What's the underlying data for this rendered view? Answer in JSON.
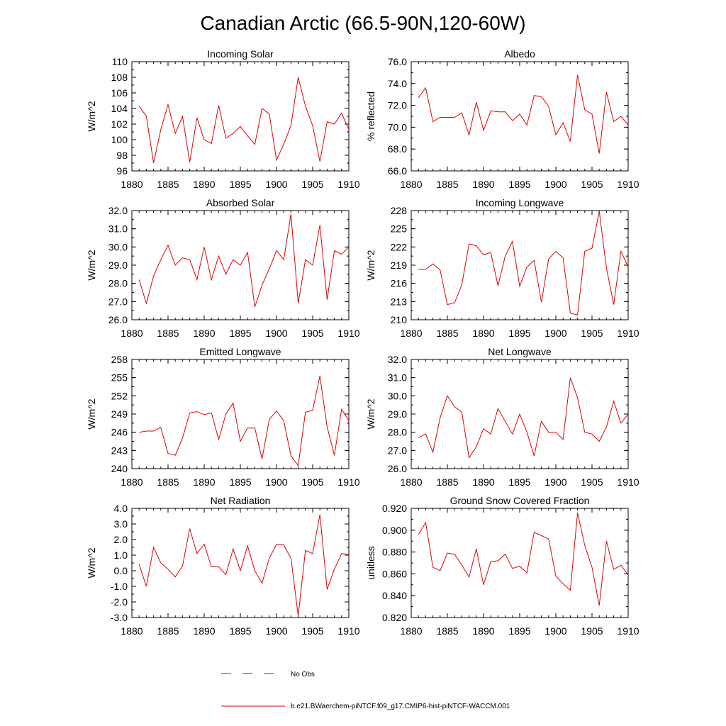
{
  "figure": {
    "title": "Canadian Arctic (66.5-90N,120-60W)"
  },
  "legend": {
    "items": [
      {
        "label": "No Obs",
        "color": "#1f3fbf",
        "style": "dashed"
      },
      {
        "label": "b.e21.BWaerchem-piNTCF.f09_g17.CMIP6-hist-piNTCF-WACCM.001",
        "color": "#e00000",
        "style": "solid"
      }
    ]
  },
  "chart_data": [
    {
      "type": "line",
      "title": "Incoming Solar",
      "ylabel": "W/m^2",
      "xlim": [
        1880,
        1910
      ],
      "ylim": [
        96,
        110
      ],
      "xticks": [
        "1880",
        "1885",
        "1890",
        "1895",
        "1900",
        "1905",
        "1910"
      ],
      "yticks": [
        "96",
        "98",
        "100",
        "102",
        "104",
        "106",
        "108",
        "110"
      ],
      "x": [
        1881,
        1882,
        1883,
        1884,
        1885,
        1886,
        1887,
        1888,
        1889,
        1890,
        1891,
        1892,
        1893,
        1894,
        1895,
        1896,
        1897,
        1898,
        1899,
        1900,
        1901,
        1902,
        1903,
        1904,
        1905,
        1906,
        1907,
        1908,
        1909,
        1910
      ],
      "series": [
        {
          "values": [
            104.3,
            103.0,
            97.0,
            101.3,
            104.5,
            100.8,
            103.0,
            97.1,
            102.8,
            100.0,
            99.5,
            104.4,
            100.2,
            100.8,
            101.7,
            100.5,
            99.4,
            104.0,
            103.3,
            97.4,
            99.4,
            101.8,
            108.0,
            104.3,
            101.8,
            97.2,
            102.3,
            102.0,
            103.4,
            101.3
          ]
        }
      ]
    },
    {
      "type": "line",
      "title": "Albedo",
      "ylabel": "% reflected",
      "xlim": [
        1880,
        1910
      ],
      "ylim": [
        66.0,
        76.0
      ],
      "xticks": [
        "1880",
        "1885",
        "1890",
        "1895",
        "1900",
        "1905",
        "1910"
      ],
      "yticks": [
        "66.0",
        "68.0",
        "70.0",
        "72.0",
        "74.0",
        "76.0"
      ],
      "x": [
        1881,
        1882,
        1883,
        1884,
        1885,
        1886,
        1887,
        1888,
        1889,
        1890,
        1891,
        1892,
        1893,
        1894,
        1895,
        1896,
        1897,
        1898,
        1899,
        1900,
        1901,
        1902,
        1903,
        1904,
        1905,
        1906,
        1907,
        1908,
        1909,
        1910
      ],
      "series": [
        {
          "values": [
            72.7,
            73.6,
            70.5,
            70.9,
            70.9,
            70.9,
            71.3,
            69.3,
            72.3,
            69.7,
            71.5,
            71.4,
            71.4,
            70.6,
            71.2,
            70.2,
            72.9,
            72.8,
            71.9,
            69.3,
            70.4,
            68.7,
            74.8,
            71.6,
            71.2,
            67.6,
            73.2,
            70.5,
            71.0,
            70.2
          ]
        }
      ]
    },
    {
      "type": "line",
      "title": "Absorbed Solar",
      "ylabel": "W/m^2",
      "xlim": [
        1880,
        1910
      ],
      "ylim": [
        26.0,
        32.0
      ],
      "xticks": [
        "1880",
        "1885",
        "1890",
        "1895",
        "1900",
        "1905",
        "1910"
      ],
      "yticks": [
        "26.0",
        "27.0",
        "28.0",
        "29.0",
        "30.0",
        "31.0",
        "32.0"
      ],
      "x": [
        1881,
        1882,
        1883,
        1884,
        1885,
        1886,
        1887,
        1888,
        1889,
        1890,
        1891,
        1892,
        1893,
        1894,
        1895,
        1896,
        1897,
        1898,
        1899,
        1900,
        1901,
        1902,
        1903,
        1904,
        1905,
        1906,
        1907,
        1908,
        1909,
        1910
      ],
      "series": [
        {
          "values": [
            28.2,
            26.9,
            28.4,
            29.3,
            30.1,
            29.0,
            29.4,
            29.3,
            28.2,
            30.0,
            28.2,
            29.5,
            28.5,
            29.3,
            29.0,
            29.7,
            26.7,
            27.9,
            28.8,
            29.8,
            29.3,
            31.8,
            26.9,
            29.3,
            29.0,
            31.2,
            27.1,
            29.8,
            29.6,
            30.0
          ]
        }
      ]
    },
    {
      "type": "line",
      "title": "Incoming Longwave",
      "ylabel": "W/m^2",
      "xlim": [
        1880,
        1910
      ],
      "ylim": [
        210,
        228
      ],
      "xticks": [
        "1880",
        "1885",
        "1890",
        "1895",
        "1900",
        "1905",
        "1910"
      ],
      "yticks": [
        "210",
        "213",
        "216",
        "219",
        "222",
        "225",
        "228"
      ],
      "x": [
        1881,
        1882,
        1883,
        1884,
        1885,
        1886,
        1887,
        1888,
        1889,
        1890,
        1891,
        1892,
        1893,
        1894,
        1895,
        1896,
        1897,
        1898,
        1899,
        1900,
        1901,
        1902,
        1903,
        1904,
        1905,
        1906,
        1907,
        1908,
        1909,
        1910
      ],
      "series": [
        {
          "values": [
            218.3,
            218.3,
            219.2,
            218.2,
            212.5,
            212.8,
            215.8,
            222.5,
            222.2,
            220.7,
            221.1,
            215.6,
            220.5,
            222.9,
            215.5,
            218.7,
            219.8,
            212.9,
            220.0,
            221.3,
            220.2,
            211.1,
            210.8,
            221.3,
            221.8,
            227.9,
            218.5,
            212.5,
            221.3,
            218.7
          ]
        }
      ]
    },
    {
      "type": "line",
      "title": "Emitted Longwave",
      "ylabel": "W/m^2",
      "xlim": [
        1880,
        1910
      ],
      "ylim": [
        240,
        258
      ],
      "xticks": [
        "1880",
        "1885",
        "1890",
        "1895",
        "1900",
        "1905",
        "1910"
      ],
      "yticks": [
        "240",
        "243",
        "246",
        "249",
        "252",
        "255",
        "258"
      ],
      "x": [
        1881,
        1882,
        1883,
        1884,
        1885,
        1886,
        1887,
        1888,
        1889,
        1890,
        1891,
        1892,
        1893,
        1894,
        1895,
        1896,
        1897,
        1898,
        1899,
        1900,
        1901,
        1902,
        1903,
        1904,
        1905,
        1906,
        1907,
        1908,
        1909,
        1910
      ],
      "series": [
        {
          "values": [
            246.0,
            246.2,
            246.2,
            246.8,
            242.5,
            242.2,
            245.0,
            249.2,
            249.4,
            248.9,
            249.2,
            244.8,
            249.0,
            250.8,
            244.5,
            246.7,
            246.7,
            241.6,
            248.1,
            249.5,
            247.9,
            242.1,
            240.5,
            249.3,
            249.6,
            255.3,
            246.9,
            242.2,
            249.8,
            247.9
          ]
        }
      ]
    },
    {
      "type": "line",
      "title": "Net Longwave",
      "ylabel": "W/m^2",
      "xlim": [
        1880,
        1910
      ],
      "ylim": [
        26.0,
        32.0
      ],
      "xticks": [
        "1880",
        "1885",
        "1890",
        "1895",
        "1900",
        "1905",
        "1910"
      ],
      "yticks": [
        "26.0",
        "27.0",
        "28.0",
        "29.0",
        "30.0",
        "31.0",
        "32.0"
      ],
      "x": [
        1881,
        1882,
        1883,
        1884,
        1885,
        1886,
        1887,
        1888,
        1889,
        1890,
        1891,
        1892,
        1893,
        1894,
        1895,
        1896,
        1897,
        1898,
        1899,
        1900,
        1901,
        1902,
        1903,
        1904,
        1905,
        1906,
        1907,
        1908,
        1909,
        1910
      ],
      "series": [
        {
          "values": [
            27.7,
            27.9,
            26.9,
            28.8,
            30.0,
            29.4,
            29.1,
            26.6,
            27.2,
            28.2,
            27.9,
            29.3,
            28.6,
            27.9,
            29.0,
            28.0,
            26.7,
            28.6,
            28.0,
            28.0,
            27.6,
            31.0,
            29.9,
            28.0,
            27.9,
            27.5,
            28.3,
            29.7,
            28.5,
            29.0
          ]
        }
      ]
    },
    {
      "type": "line",
      "title": "Net Radiation",
      "ylabel": "W/m^2",
      "xlim": [
        1880,
        1910
      ],
      "ylim": [
        -3.0,
        4.0
      ],
      "xticks": [
        "1880",
        "1885",
        "1890",
        "1895",
        "1900",
        "1905",
        "1910"
      ],
      "yticks": [
        "-3.0",
        "-2.0",
        "-1.0",
        "0.0",
        "1.0",
        "2.0",
        "3.0",
        "4.0"
      ],
      "x": [
        1881,
        1882,
        1883,
        1884,
        1885,
        1886,
        1887,
        1888,
        1889,
        1890,
        1891,
        1892,
        1893,
        1894,
        1895,
        1896,
        1897,
        1898,
        1899,
        1900,
        1901,
        1902,
        1903,
        1904,
        1905,
        1906,
        1907,
        1908,
        1909,
        1910
      ],
      "series": [
        {
          "values": [
            0.4,
            -1.0,
            1.5,
            0.5,
            0.1,
            -0.4,
            0.3,
            2.7,
            1.1,
            1.7,
            0.25,
            0.25,
            -0.25,
            1.4,
            0.0,
            1.6,
            0.0,
            -0.8,
            0.8,
            1.7,
            1.65,
            0.8,
            -2.9,
            1.3,
            1.1,
            3.6,
            -1.2,
            0.1,
            1.1,
            1.05
          ]
        }
      ]
    },
    {
      "type": "line",
      "title": "Ground Snow Covered Fraction",
      "ylabel": "unitless",
      "xlim": [
        1880,
        1910
      ],
      "ylim": [
        0.82,
        0.92
      ],
      "xticks": [
        "1880",
        "1885",
        "1890",
        "1895",
        "1900",
        "1905",
        "1910"
      ],
      "yticks": [
        "0.820",
        "0.840",
        "0.860",
        "0.880",
        "0.900",
        "0.920"
      ],
      "x": [
        1881,
        1882,
        1883,
        1884,
        1885,
        1886,
        1887,
        1888,
        1889,
        1890,
        1891,
        1892,
        1893,
        1894,
        1895,
        1896,
        1897,
        1898,
        1899,
        1900,
        1901,
        1902,
        1903,
        1904,
        1905,
        1906,
        1907,
        1908,
        1909,
        1910
      ],
      "series": [
        {
          "values": [
            0.896,
            0.907,
            0.866,
            0.863,
            0.879,
            0.878,
            0.868,
            0.857,
            0.883,
            0.85,
            0.871,
            0.872,
            0.878,
            0.865,
            0.867,
            0.861,
            0.898,
            0.895,
            0.892,
            0.858,
            0.851,
            0.845,
            0.916,
            0.886,
            0.866,
            0.831,
            0.89,
            0.864,
            0.868,
            0.859
          ]
        }
      ]
    }
  ]
}
